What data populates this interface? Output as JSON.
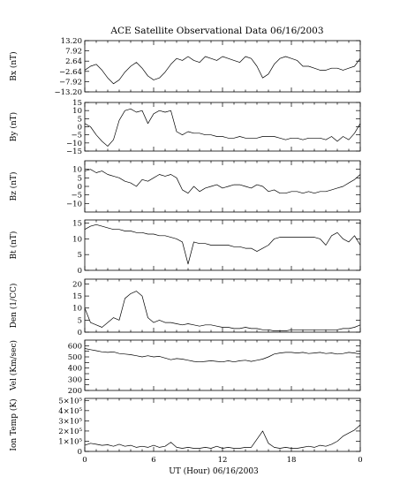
{
  "title": "ACE Satellite Observational Data   06/16/2003",
  "xlabel": "UT (Hour)   06/16/2003",
  "x_ticks": [
    "0",
    "6",
    "12",
    "18",
    "0"
  ],
  "chart_data": [
    {
      "type": "line",
      "ylabel": "Bx (nT)",
      "ylim": [
        -13.2,
        13.2
      ],
      "yticks": [
        -13.2,
        -7.92,
        -2.64,
        2.64,
        7.92,
        13.2
      ],
      "ytick_labels": [
        "−13.20",
        "−7.92",
        "−2.64",
        "2.64",
        "7.92",
        "13.20"
      ],
      "x": [
        0,
        0.5,
        1,
        1.5,
        2,
        2.5,
        3,
        3.5,
        4,
        4.5,
        5,
        5.5,
        6,
        6.5,
        7,
        7.5,
        8,
        8.5,
        9,
        9.5,
        10,
        10.5,
        11,
        11.5,
        12,
        12.5,
        13,
        13.5,
        14,
        14.5,
        15,
        15.5,
        16,
        16.5,
        17,
        17.5,
        18,
        18.5,
        19,
        19.5,
        20,
        20.5,
        21,
        21.5,
        22,
        22.5,
        23,
        23.5,
        24
      ],
      "values": [
        -2,
        0,
        1,
        -2,
        -6,
        -9,
        -7,
        -3,
        0,
        2,
        -1,
        -5,
        -7,
        -6,
        -3,
        1,
        4,
        3,
        5,
        3,
        2,
        5,
        4,
        3,
        5,
        4,
        3,
        2,
        5,
        4,
        0,
        -6,
        -4,
        1,
        4,
        5,
        4,
        3,
        0,
        0,
        -1,
        -2,
        -2,
        -1,
        -1,
        -2,
        -1,
        0,
        4
      ]
    },
    {
      "type": "line",
      "ylabel": "By (nT)",
      "ylim": [
        -15,
        15
      ],
      "yticks": [
        -15,
        -10,
        -5,
        0,
        5,
        10,
        15
      ],
      "ytick_labels": [
        "−15",
        "−10",
        "−5",
        "0",
        "5",
        "10",
        "15"
      ],
      "x": [
        0,
        0.5,
        1,
        1.5,
        2,
        2.5,
        3,
        3.5,
        4,
        4.5,
        5,
        5.5,
        6,
        6.5,
        7,
        7.5,
        8,
        8.5,
        9,
        9.5,
        10,
        10.5,
        11,
        11.5,
        12,
        12.5,
        13,
        13.5,
        14,
        14.5,
        15,
        15.5,
        16,
        16.5,
        17,
        17.5,
        18,
        18.5,
        19,
        19.5,
        20,
        20.5,
        21,
        21.5,
        22,
        22.5,
        23,
        23.5,
        24
      ],
      "values": [
        2,
        0,
        -5,
        -9,
        -12,
        -8,
        4,
        10,
        11,
        9,
        10,
        2,
        8,
        10,
        9,
        10,
        -3,
        -5,
        -3,
        -4,
        -4,
        -5,
        -5,
        -6,
        -6,
        -7,
        -7,
        -6,
        -7,
        -7,
        -7,
        -6,
        -6,
        -6,
        -7,
        -8,
        -7,
        -7,
        -8,
        -7,
        -7,
        -7,
        -8,
        -6,
        -9,
        -6,
        -8,
        -4,
        2
      ]
    },
    {
      "type": "line",
      "ylabel": "Bz (nT)",
      "ylim": [
        -15,
        15
      ],
      "yticks": [
        -10,
        -5,
        0,
        5,
        10
      ],
      "ytick_labels": [
        "−10",
        "−5",
        "0",
        "5",
        "10"
      ],
      "x": [
        0,
        0.5,
        1,
        1.5,
        2,
        2.5,
        3,
        3.5,
        4,
        4.5,
        5,
        5.5,
        6,
        6.5,
        7,
        7.5,
        8,
        8.5,
        9,
        9.5,
        10,
        10.5,
        11,
        11.5,
        12,
        12.5,
        13,
        13.5,
        14,
        14.5,
        15,
        15.5,
        16,
        16.5,
        17,
        17.5,
        18,
        18.5,
        19,
        19.5,
        20,
        20.5,
        21,
        21.5,
        22,
        22.5,
        23,
        23.5,
        24
      ],
      "values": [
        9,
        10,
        8,
        9,
        7,
        6,
        5,
        3,
        2,
        0,
        4,
        3,
        5,
        7,
        6,
        7,
        5,
        -2,
        -4,
        0,
        -3,
        -1,
        0,
        1,
        -1,
        0,
        1,
        1,
        0,
        -1,
        1,
        0,
        -3,
        -2,
        -4,
        -4,
        -3,
        -3,
        -4,
        -3,
        -4,
        -3,
        -3,
        -2,
        -1,
        0,
        2,
        4,
        7
      ]
    },
    {
      "type": "line",
      "ylabel": "Bt (nT)",
      "ylim": [
        0,
        16
      ],
      "yticks": [
        0,
        5,
        10,
        15
      ],
      "ytick_labels": [
        "0",
        "5",
        "10",
        "15"
      ],
      "x": [
        0,
        0.5,
        1,
        1.5,
        2,
        2.5,
        3,
        3.5,
        4,
        4.5,
        5,
        5.5,
        6,
        6.5,
        7,
        7.5,
        8,
        8.5,
        9,
        9.5,
        10,
        10.5,
        11,
        11.5,
        12,
        12.5,
        13,
        13.5,
        14,
        14.5,
        15,
        15.5,
        16,
        16.5,
        17,
        17.5,
        18,
        18.5,
        19,
        19.5,
        20,
        20.5,
        21,
        21.5,
        22,
        22.5,
        23,
        23.5,
        24
      ],
      "values": [
        13,
        14,
        14.5,
        14,
        13.5,
        13,
        13,
        12.5,
        12.5,
        12,
        12,
        11.5,
        11.5,
        11,
        11,
        10.5,
        10,
        9,
        2,
        9,
        8.5,
        8.5,
        8,
        8,
        8,
        8,
        7.5,
        7.5,
        7,
        7,
        6,
        7,
        8,
        10,
        10.5,
        10.5,
        10.5,
        10.5,
        10.5,
        10.5,
        10.5,
        10,
        8,
        11,
        12,
        10,
        9,
        11,
        8
      ]
    },
    {
      "type": "line",
      "ylabel": "Den (1/CC)",
      "ylim": [
        0,
        22
      ],
      "yticks": [
        0,
        5,
        10,
        15,
        20
      ],
      "ytick_labels": [
        "0",
        "5",
        "10",
        "15",
        "20"
      ],
      "x": [
        0,
        0.5,
        1,
        1.5,
        2,
        2.5,
        3,
        3.5,
        4,
        4.5,
        5,
        5.5,
        6,
        6.5,
        7,
        7.5,
        8,
        8.5,
        9,
        9.5,
        10,
        10.5,
        11,
        11.5,
        12,
        12.5,
        13,
        13.5,
        14,
        14.5,
        15,
        15.5,
        16,
        16.5,
        17,
        17.5,
        18,
        18.5,
        19,
        19.5,
        20,
        20.5,
        21,
        21.5,
        22,
        22.5,
        23,
        23.5,
        24
      ],
      "values": [
        10,
        4,
        3,
        2,
        4,
        6,
        5,
        14,
        16,
        17,
        15,
        6,
        4,
        5,
        4,
        4,
        3.5,
        3,
        3.5,
        3,
        2.5,
        3,
        3,
        2.5,
        2,
        2,
        1.5,
        1.5,
        2,
        1.5,
        1.5,
        1,
        1,
        0.5,
        0.5,
        0.5,
        1,
        1,
        1,
        1,
        1,
        1,
        1,
        1,
        1,
        1.5,
        1.5,
        2,
        3
      ]
    },
    {
      "type": "line",
      "ylabel": "Vel (Km/sec)",
      "ylim": [
        200,
        650
      ],
      "yticks": [
        200,
        250,
        300,
        350,
        400,
        450,
        500,
        550,
        600
      ],
      "ytick_labels": [
        "200",
        "",
        "300",
        "",
        "400",
        "",
        "500",
        "",
        "600"
      ],
      "x": [
        0,
        0.5,
        1,
        1.5,
        2,
        2.5,
        3,
        3.5,
        4,
        4.5,
        5,
        5.5,
        6,
        6.5,
        7,
        7.5,
        8,
        8.5,
        9,
        9.5,
        10,
        10.5,
        11,
        11.5,
        12,
        12.5,
        13,
        13.5,
        14,
        14.5,
        15,
        15.5,
        16,
        16.5,
        17,
        17.5,
        18,
        18.5,
        19,
        19.5,
        20,
        20.5,
        21,
        21.5,
        22,
        22.5,
        23,
        23.5,
        24
      ],
      "values": [
        575,
        565,
        555,
        545,
        540,
        545,
        530,
        525,
        520,
        510,
        500,
        510,
        500,
        505,
        490,
        475,
        485,
        480,
        470,
        460,
        455,
        460,
        465,
        460,
        455,
        465,
        455,
        465,
        470,
        460,
        470,
        480,
        500,
        525,
        535,
        540,
        540,
        535,
        540,
        530,
        535,
        540,
        530,
        535,
        525,
        530,
        540,
        535,
        525
      ]
    },
    {
      "type": "line",
      "ylabel": "Ion Temp (K)",
      "ylim": [
        0,
        520000
      ],
      "yticks": [
        0,
        100000,
        200000,
        300000,
        400000,
        500000
      ],
      "ytick_labels": [
        "0",
        "1×10⁵",
        "2×10⁵",
        "3×10⁵",
        "4×10⁵",
        "5×10⁵"
      ],
      "x": [
        0,
        0.5,
        1,
        1.5,
        2,
        2.5,
        3,
        3.5,
        4,
        4.5,
        5,
        5.5,
        6,
        6.5,
        7,
        7.5,
        8,
        8.5,
        9,
        9.5,
        10,
        10.5,
        11,
        11.5,
        12,
        12.5,
        13,
        13.5,
        14,
        14.5,
        15,
        15.5,
        16,
        16.5,
        17,
        17.5,
        18,
        18.5,
        19,
        19.5,
        20,
        20.5,
        21,
        21.5,
        22,
        22.5,
        23,
        23.5,
        24
      ],
      "values": [
        60000,
        80000,
        70000,
        60000,
        65000,
        50000,
        70000,
        50000,
        60000,
        40000,
        50000,
        40000,
        60000,
        40000,
        50000,
        90000,
        40000,
        30000,
        40000,
        30000,
        30000,
        40000,
        30000,
        50000,
        30000,
        40000,
        30000,
        30000,
        40000,
        40000,
        120000,
        200000,
        80000,
        40000,
        30000,
        40000,
        30000,
        30000,
        40000,
        50000,
        40000,
        60000,
        50000,
        70000,
        100000,
        150000,
        180000,
        210000,
        260000
      ]
    }
  ]
}
